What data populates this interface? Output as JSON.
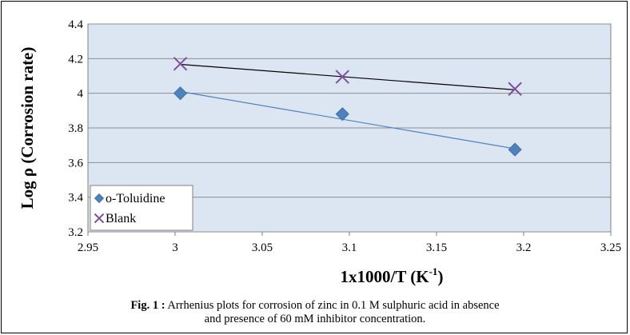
{
  "chart_data": {
    "type": "scatter",
    "title": "",
    "xlabel": "1x1000/T (K",
    "xlabel_superscript": "-1",
    "xlabel_suffix": ")",
    "ylabel": "Log ρ (Corrosion rate)",
    "xlim": [
      2.95,
      3.25
    ],
    "ylim": [
      3.2,
      4.4
    ],
    "x_ticks": [
      "2.95",
      "3",
      "3.05",
      "3.1",
      "3.15",
      "3.2",
      "3.25"
    ],
    "y_ticks": [
      "3.2",
      "3.4",
      "3.6",
      "3.8",
      "4",
      "4.2",
      "4.4"
    ],
    "grid": "horizontal",
    "legend_position": "bottom-left",
    "plot_background": "#dce6f2",
    "series": [
      {
        "name": "o-Toluidine",
        "marker": "diamond",
        "color": "#4f81bd",
        "trendline_color": "#4f81bd",
        "x": [
          3.003,
          3.096,
          3.195
        ],
        "y": [
          4.0,
          3.88,
          3.675
        ],
        "trendline": [
          [
            3.003,
            4.01
          ],
          [
            3.195,
            3.68
          ]
        ]
      },
      {
        "name": "Blank",
        "marker": "x",
        "color": "#7f4fa0",
        "trendline_color": "#000000",
        "x": [
          3.003,
          3.096,
          3.195
        ],
        "y": [
          4.17,
          4.095,
          4.025
        ],
        "trendline": [
          [
            3.003,
            4.167
          ],
          [
            3.195,
            4.02
          ]
        ]
      }
    ]
  },
  "caption": {
    "label": "Fig. 1 :",
    "text": " Arrhenius plots for corrosion of zinc in 0.1 M sulphuric acid in absence",
    "line2": "and presence of  60 mM inhibitor concentration."
  }
}
